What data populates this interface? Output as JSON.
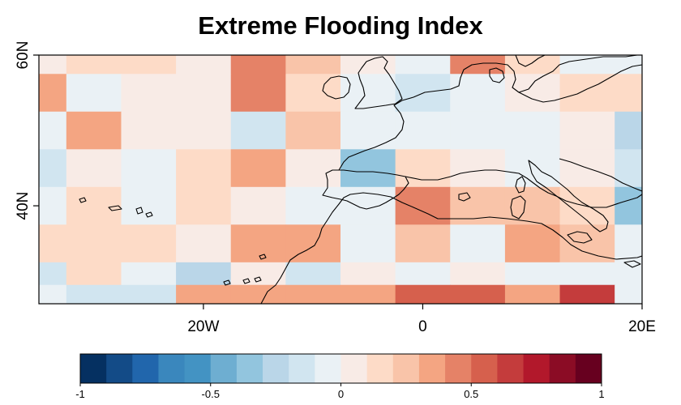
{
  "chart_data": {
    "type": "heatmap",
    "title": "Extreme Flooding Index",
    "x_ticks": [
      {
        "value": -20,
        "label": "20W"
      },
      {
        "value": 0,
        "label": "0"
      },
      {
        "value": 20,
        "label": "20E"
      }
    ],
    "y_ticks": [
      {
        "value": 40,
        "label": "40N"
      },
      {
        "value": 60,
        "label": "60N"
      }
    ],
    "xlim": [
      -35,
      20
    ],
    "ylim": [
      27,
      60
    ],
    "lon_edges": [
      -35,
      -32.5,
      -27.5,
      -22.5,
      -17.5,
      -12.5,
      -7.5,
      -2.5,
      2.5,
      7.5,
      12.5,
      17.5,
      20
    ],
    "lat_edges": [
      27,
      29.5,
      32.5,
      37.5,
      42.5,
      47.5,
      52.5,
      57.5,
      60
    ],
    "values": [
      [
        0.05,
        0.15,
        0.15,
        0.05,
        0.4,
        0.25,
        0.0,
        -0.1,
        0.4,
        0.15,
        -0.1,
        -0.1
      ],
      [
        0.35,
        -0.1,
        0.05,
        0.05,
        0.4,
        0.15,
        -0.1,
        -0.2,
        -0.1,
        0.05,
        0.1,
        0.1
      ],
      [
        -0.1,
        0.3,
        0.0,
        0.05,
        -0.2,
        0.2,
        -0.1,
        -0.1,
        -0.05,
        -0.05,
        0.05,
        -0.3
      ],
      [
        -0.2,
        0.05,
        -0.1,
        0.1,
        0.3,
        0.05,
        -0.35,
        0.1,
        0.0,
        -0.1,
        0.0,
        -0.2
      ],
      [
        -0.1,
        0.15,
        -0.1,
        0.1,
        0.05,
        -0.05,
        -0.1,
        0.4,
        0.2,
        0.2,
        0.15,
        -0.35
      ],
      [
        0.15,
        0.15,
        0.15,
        0.05,
        0.3,
        0.3,
        -0.05,
        0.2,
        -0.1,
        0.3,
        0.2,
        -0.05
      ],
      [
        -0.2,
        0.15,
        -0.1,
        -0.25,
        0.05,
        -0.2,
        0.05,
        -0.1,
        0.05,
        -0.1,
        -0.05,
        -0.1
      ],
      [
        -0.05,
        -0.2,
        -0.2,
        0.3,
        0.3,
        0.3,
        0.3,
        0.5,
        0.5,
        0.3,
        0.6,
        -0.1
      ]
    ],
    "colorbar": {
      "min": -1,
      "max": 1,
      "ticks": [
        {
          "value": -1,
          "label": "-1"
        },
        {
          "value": -0.5,
          "label": "-0.5"
        },
        {
          "value": 0,
          "label": "0"
        },
        {
          "value": 0.5,
          "label": "0.5"
        },
        {
          "value": 1,
          "label": "1"
        }
      ],
      "colors": [
        "#053061",
        "#134b87",
        "#2166ac",
        "#3a87bd",
        "#4393c3",
        "#6eaed1",
        "#92c5de",
        "#bad6e8",
        "#d1e5f0",
        "#eaf1f5",
        "#f8ebe6",
        "#fddbc7",
        "#f9c4a9",
        "#f4a582",
        "#e58267",
        "#d6604d",
        "#c43c3c",
        "#b2182b",
        "#8b0c25",
        "#67001f"
      ]
    }
  }
}
